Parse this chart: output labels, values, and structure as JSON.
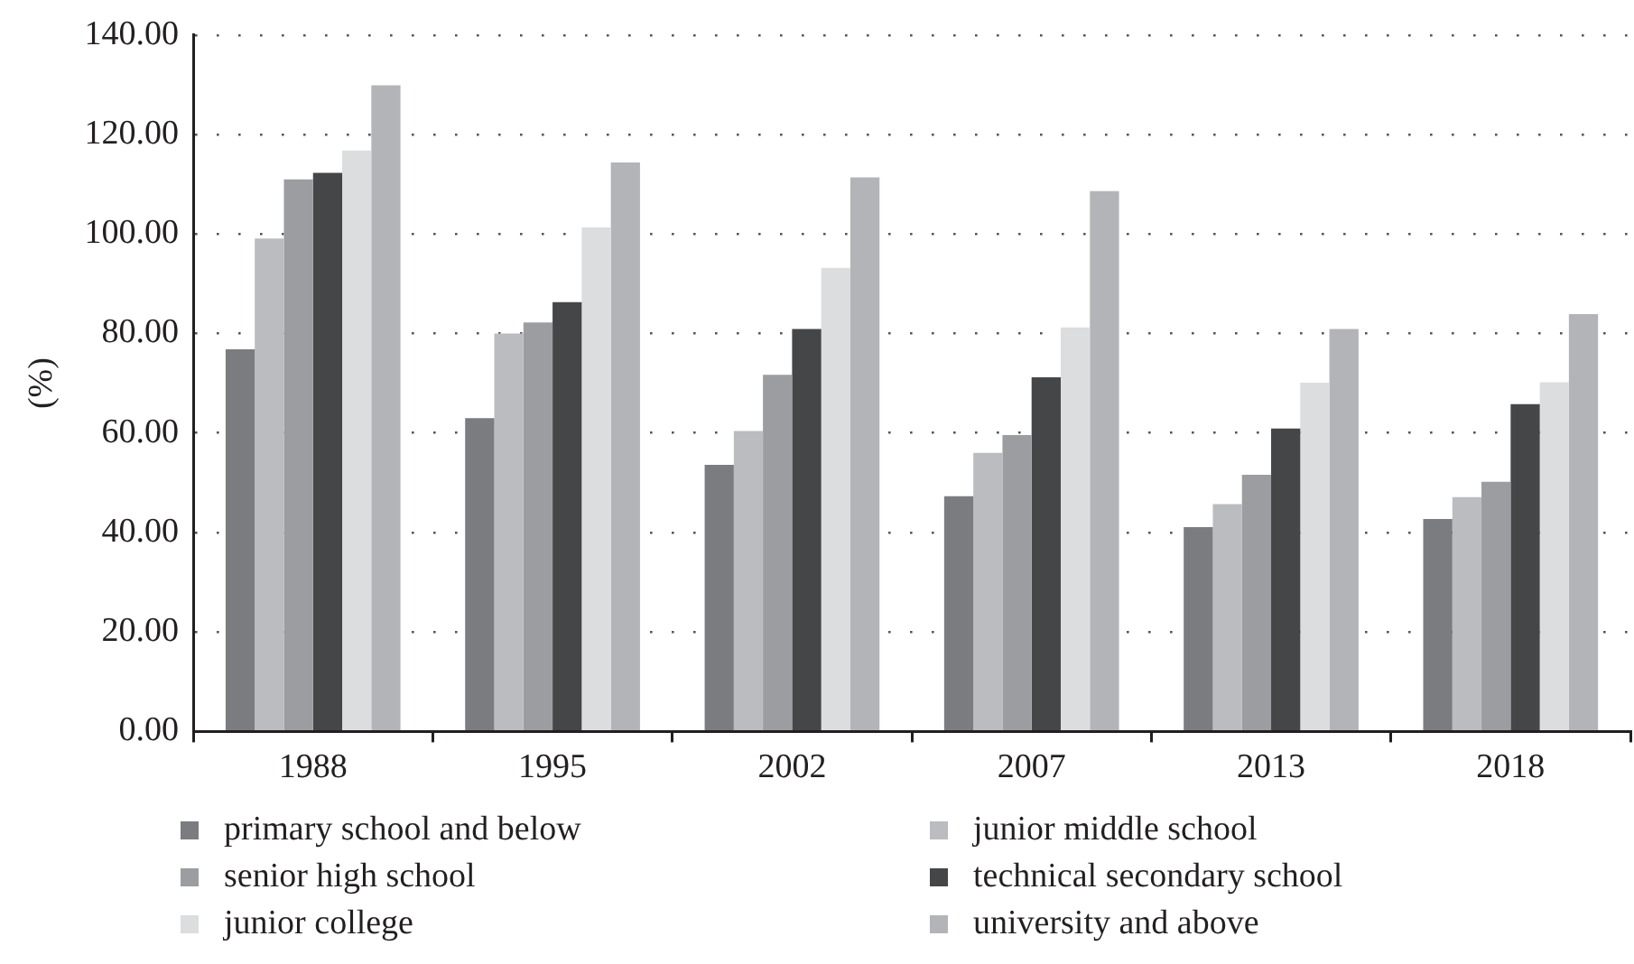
{
  "chart_data": {
    "type": "bar",
    "ylabel": "(%)",
    "categories": [
      "1988",
      "1995",
      "2002",
      "2007",
      "2013",
      "2018"
    ],
    "series": [
      {
        "name": "primary school and below",
        "color": "#7b7c80",
        "values": [
          76.8,
          63.0,
          53.6,
          47.3,
          41.1,
          42.7
        ]
      },
      {
        "name": "junior middle school",
        "color": "#bbbcc0",
        "values": [
          99.1,
          80.0,
          60.4,
          56.0,
          45.7,
          47.1
        ]
      },
      {
        "name": "senior high school",
        "color": "#9c9da1",
        "values": [
          111.0,
          82.2,
          71.7,
          59.6,
          51.6,
          50.2
        ]
      },
      {
        "name": "technical secondary school",
        "color": "#454648",
        "values": [
          112.3,
          86.3,
          80.9,
          71.2,
          60.9,
          65.8
        ]
      },
      {
        "name": "junior college",
        "color": "#dcdddf",
        "values": [
          116.8,
          101.3,
          93.2,
          81.2,
          70.1,
          70.2
        ]
      },
      {
        "name": "university and above",
        "color": "#b3b4b8",
        "values": [
          129.9,
          114.4,
          111.4,
          108.6,
          80.9,
          83.9
        ]
      }
    ],
    "ylim": [
      0,
      140
    ],
    "yticks": [
      {
        "value": 0,
        "label": "0.00"
      },
      {
        "value": 20,
        "label": "20.00"
      },
      {
        "value": 40,
        "label": "40.00"
      },
      {
        "value": 60,
        "label": "60.00"
      },
      {
        "value": 80,
        "label": "80.00"
      },
      {
        "value": 100,
        "label": "100.00"
      },
      {
        "value": 120,
        "label": "120.00"
      },
      {
        "value": 140,
        "label": "140.00"
      }
    ],
    "grid": "y",
    "legend": "bottom"
  }
}
